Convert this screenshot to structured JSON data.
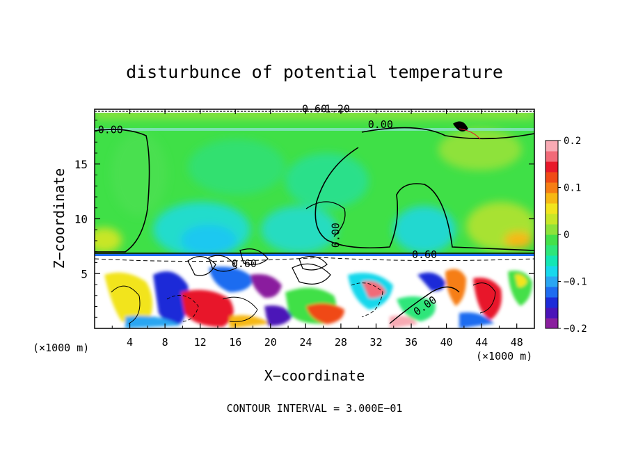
{
  "chart_data": {
    "type": "heatmap",
    "title": "disturbunce of potential temperature",
    "xlabel": "X−coordinate",
    "ylabel": "Z−coordinate",
    "x_unit": "(×1000 m)",
    "x_unit_right": "(×1000 m)",
    "footer": "CONTOUR INTERVAL = 3.000E−01",
    "xlim": [
      0,
      50
    ],
    "ylim": [
      0,
      20
    ],
    "x_ticks": [
      4,
      8,
      12,
      16,
      20,
      24,
      28,
      32,
      36,
      40,
      44,
      48
    ],
    "x_tick_labels": [
      "4",
      "8",
      "12",
      "16",
      "20",
      "24",
      "28",
      "32",
      "36",
      "40",
      "44",
      "48"
    ],
    "y_ticks": [
      5,
      10,
      15
    ],
    "y_tick_labels": [
      "5",
      "10",
      "15"
    ],
    "colorbar": {
      "range": [
        -0.2,
        0.2
      ],
      "tick_values": [
        0.2,
        0.1,
        0,
        -0.1,
        -0.2
      ],
      "tick_labels": [
        "0.2",
        "0.1",
        "0",
        "−0.1",
        "−0.2"
      ],
      "colors": [
        "#8a1f9e",
        "#4b14b8",
        "#1e2bd8",
        "#1f6cf0",
        "#2aa6f2",
        "#18d8ec",
        "#14e6b4",
        "#2ee67a",
        "#44e04a",
        "#8ee23a",
        "#c8e628",
        "#f2e41e",
        "#f6b814",
        "#f67e14",
        "#f04a16",
        "#e8182a",
        "#f26a78",
        "#f8aab4"
      ]
    },
    "contour_labels": [
      {
        "text": "0.00",
        "x": 1.8,
        "y": 17.8
      },
      {
        "text": "0.00",
        "x": 32.5,
        "y": 18.3
      },
      {
        "text": "0.00",
        "x": 27.8,
        "y": 8.5,
        "rotate": -90
      },
      {
        "text": "0.60",
        "x": 37.5,
        "y": 6.4
      },
      {
        "text": "0.60",
        "x": 17.0,
        "y": 5.6
      },
      {
        "text": "0.00",
        "x": 37.8,
        "y": 1.8,
        "rotate": -35
      },
      {
        "text": "0.60",
        "x": 25.0,
        "y": 19.7
      },
      {
        "text": "1.20",
        "x": 27.6,
        "y": 19.7
      }
    ]
  }
}
